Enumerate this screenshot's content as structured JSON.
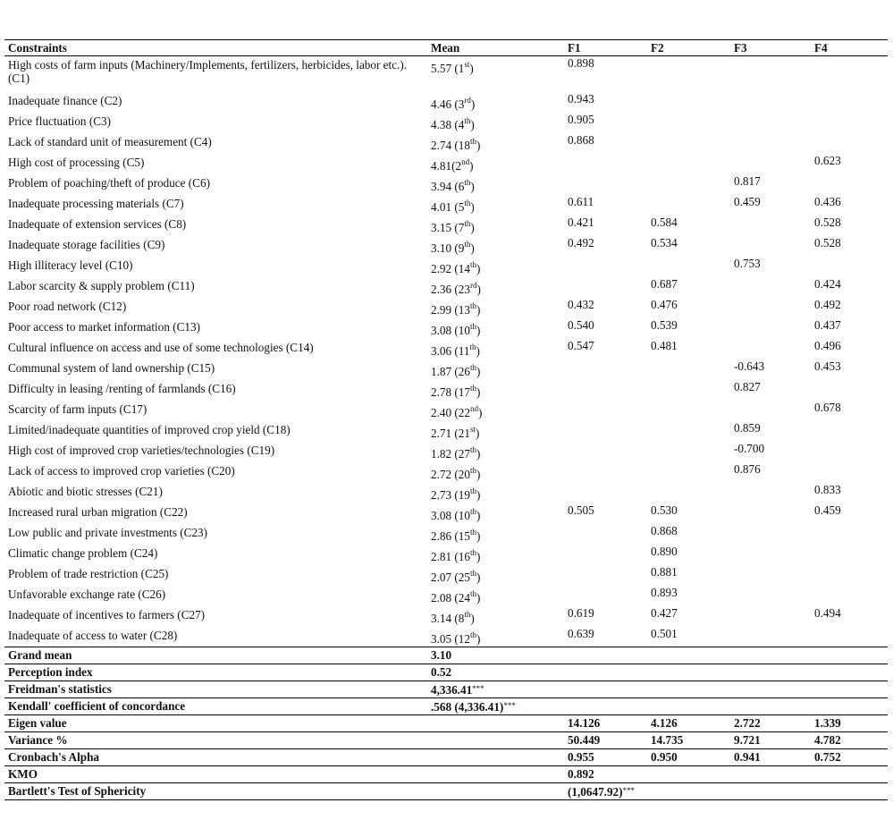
{
  "headers": [
    "Constraints",
    "Mean",
    "F1",
    "F2",
    "F3",
    "F4"
  ],
  "rows": [
    {
      "label": "High costs of farm inputs (Machinery/Implements, fertilizers, herbicides, labor etc.). (C1)",
      "mean": "5.57 (1",
      "rank": "st",
      "f1": "0.898",
      "f2": "",
      "f3": "",
      "f4": ""
    },
    {
      "label": "Inadequate finance (C2)",
      "mean": "4.46 (3",
      "rank": "rd",
      "f1": "0.943",
      "f2": "",
      "f3": "",
      "f4": ""
    },
    {
      "label": "Price fluctuation (C3)",
      "mean": "4.38 (4",
      "rank": "th",
      "f1": "0.905",
      "f2": "",
      "f3": "",
      "f4": ""
    },
    {
      "label": "Lack of standard unit of measurement (C4)",
      "mean": "2.74 (18",
      "rank": "th",
      "f1": "0.868",
      "f2": "",
      "f3": "",
      "f4": ""
    },
    {
      "label": "High cost of processing (C5)",
      "mean": "4.81(2",
      "rank": "nd",
      "f1": "",
      "f2": "",
      "f3": "",
      "f4": "0.623"
    },
    {
      "label": "Problem of poaching/theft of produce (C6)",
      "mean": "3.94 (6",
      "rank": "th",
      "f1": "",
      "f2": "",
      "f3": "0.817",
      "f4": ""
    },
    {
      "label": "Inadequate processing materials (C7)",
      "mean": "4.01 (5",
      "rank": "th",
      "f1": "0.611",
      "f2": "",
      "f3": "0.459",
      "f4": "0.436"
    },
    {
      "label": "Inadequate of extension services (C8)",
      "mean": "3.15 (7",
      "rank": "th",
      "f1": "0.421",
      "f2": "0.584",
      "f3": "",
      "f4": "0.528"
    },
    {
      "label": "Inadequate storage facilities (C9)",
      "mean": "3.10 (9",
      "rank": "th",
      "f1": "0.492",
      "f2": "0.534",
      "f3": "",
      "f4": "0.528"
    },
    {
      "label": "High illiteracy level (C10)",
      "mean": "2.92 (14",
      "rank": "th",
      "f1": "",
      "f2": "",
      "f3": "0.753",
      "f4": ""
    },
    {
      "label": "Labor scarcity & supply problem (C11)",
      "mean": "2.36 (23",
      "rank": "rd",
      "f1": "",
      "f2": "0.687",
      "f3": "",
      "f4": "0.424"
    },
    {
      "label": "Poor road network (C12)",
      "mean": "2.99 (13",
      "rank": "th",
      "f1": "0.432",
      "f2": "0.476",
      "f3": "",
      "f4": "0.492"
    },
    {
      "label": "Poor access to market information (C13)",
      "mean": "3.08 (10",
      "rank": "th",
      "f1": "0.540",
      "f2": "0.539",
      "f3": "",
      "f4": "0.437"
    },
    {
      "label": "Cultural influence on access and use of some technologies (C14)",
      "mean": "3.06 (11",
      "rank": "th",
      "f1": "0.547",
      "f2": "0.481",
      "f3": "",
      "f4": "0.496"
    },
    {
      "label": "Communal system of land ownership (C15)",
      "mean": "1.87 (26",
      "rank": "th",
      "f1": "",
      "f2": "",
      "f3": "-0.643",
      "f4": "0.453"
    },
    {
      "label": "Difficulty in leasing /renting of farmlands (C16)",
      "mean": "2.78 (17",
      "rank": "th",
      "f1": "",
      "f2": "",
      "f3": "0.827",
      "f4": ""
    },
    {
      "label": "Scarcity of farm inputs (C17)",
      "mean": "2.40 (22",
      "rank": "nd",
      "f1": "",
      "f2": "",
      "f3": "",
      "f4": "0.678"
    },
    {
      "label": "Limited/inadequate quantities of improved crop yield (C18)",
      "mean": "2.71 (21",
      "rank": "st",
      "f1": "",
      "f2": "",
      "f3": "0.859",
      "f4": ""
    },
    {
      "label": "High cost of improved crop varieties/technologies (C19)",
      "mean": "1.82 (27",
      "rank": "th",
      "f1": "",
      "f2": "",
      "f3": "-0.700",
      "f4": ""
    },
    {
      "label": "Lack of access to improved crop varieties (C20)",
      "mean": "2.72 (20",
      "rank": "th",
      "f1": "",
      "f2": "",
      "f3": "0.876",
      "f4": ""
    },
    {
      "label": "Abiotic and biotic stresses (C21)",
      "mean": "2.73 (19",
      "rank": "th",
      "f1": "",
      "f2": "",
      "f3": "",
      "f4": "0.833"
    },
    {
      "label": "Increased rural urban migration (C22)",
      "mean": "3.08 (10",
      "rank": "th",
      "f1": "0.505",
      "f2": "0.530",
      "f3": "",
      "f4": "0.459"
    },
    {
      "label": "Low public and private investments (C23)",
      "mean": "2.86 (15",
      "rank": "th",
      "f1": "",
      "f2": "0.868",
      "f3": "",
      "f4": ""
    },
    {
      "label": "Climatic change problem (C24)",
      "mean": "2.81 (16",
      "rank": "th",
      "f1": "",
      "f2": "0.890",
      "f3": "",
      "f4": ""
    },
    {
      "label": "Problem of trade restriction (C25)",
      "mean": "2.07 (25",
      "rank": "th",
      "f1": "",
      "f2": "0.881",
      "f3": "",
      "f4": ""
    },
    {
      "label": "Unfavorable exchange rate (C26)",
      "mean": "2.08 (24",
      "rank": "th",
      "f1": "",
      "f2": "0.893",
      "f3": "",
      "f4": ""
    },
    {
      "label": "Inadequate of incentives to farmers (C27)",
      "mean": "3.14 (8",
      "rank": "th",
      "f1": "0.619",
      "f2": "0.427",
      "f3": "",
      "f4": "0.494"
    },
    {
      "label": "Inadequate of access to water (C28)",
      "mean": "3.05 (12",
      "rank": "th",
      "f1": "0.639",
      "f2": "0.501",
      "f3": "",
      "f4": ""
    }
  ],
  "summary": [
    {
      "label": "Grand mean",
      "mean": "3.10",
      "mean_stars": "",
      "f1": "",
      "f1_stars": "",
      "f2": "",
      "f3": "",
      "f4": ""
    },
    {
      "label": "Perception index",
      "mean": "0.52",
      "mean_stars": "",
      "f1": "",
      "f1_stars": "",
      "f2": "",
      "f3": "",
      "f4": ""
    },
    {
      "label": "Freidman's statistics",
      "mean": "4,336.41",
      "mean_stars": "***",
      "f1": "",
      "f1_stars": "",
      "f2": "",
      "f3": "",
      "f4": ""
    },
    {
      "label": "Kendall' coefficient of concordance",
      "mean": ".568 (4,336.41)",
      "mean_stars": "***",
      "f1": "",
      "f1_stars": "",
      "f2": "",
      "f3": "",
      "f4": ""
    },
    {
      "label": "Eigen value",
      "mean": "",
      "mean_stars": "",
      "f1": "14.126",
      "f1_stars": "",
      "f2": "4.126",
      "f3": "2.722",
      "f4": "1.339"
    },
    {
      "label": "Variance %",
      "mean": "",
      "mean_stars": "",
      "f1": "50.449",
      "f1_stars": "",
      "f2": "14.735",
      "f3": "9.721",
      "f4": "4.782"
    },
    {
      "label": "Cronbach's Alpha",
      "mean": "",
      "mean_stars": "",
      "f1": "0.955",
      "f1_stars": "",
      "f2": "0.950",
      "f3": "0.941",
      "f4": "0.752"
    },
    {
      "label": "KMO",
      "mean": "",
      "mean_stars": "",
      "f1": "0.892",
      "f1_stars": "",
      "f2": "",
      "f3": "",
      "f4": ""
    },
    {
      "label": "Bartlett's Test of Sphericity",
      "mean": "",
      "mean_stars": "",
      "f1": "(1,0647.92)",
      "f1_stars": "***",
      "f2": "",
      "f3": "",
      "f4": ""
    }
  ]
}
